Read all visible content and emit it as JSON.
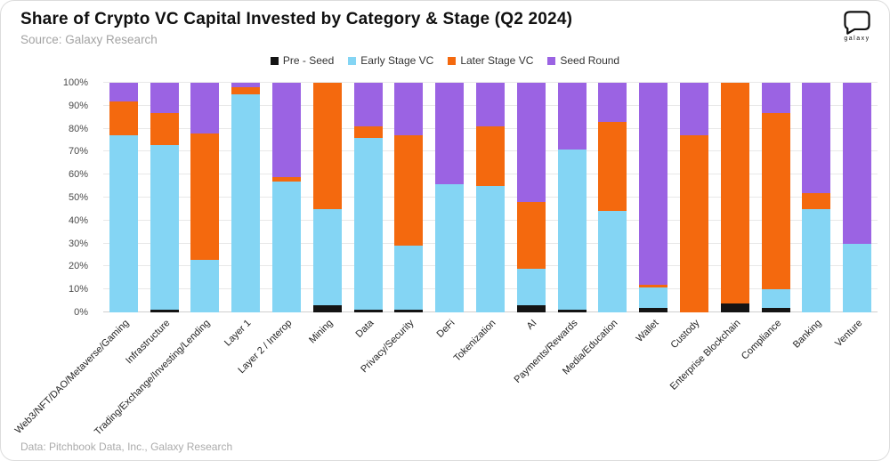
{
  "header": {
    "title": "Share of Crypto VC Capital Invested by Category & Stage (Q2 2024)",
    "source": "Source: Galaxy Research",
    "logo_text": "galaxy"
  },
  "footer": {
    "text": "Data: Pitchbook Data, Inc., Galaxy Research"
  },
  "colors": {
    "pre_seed": "#141414",
    "early": "#84d5f4",
    "later": "#f4690e",
    "seed": "#9b63e3",
    "grid": "#e8e8e8",
    "axis_text": "#4a4a4a"
  },
  "chart_data": {
    "type": "bar",
    "stacked": true,
    "title": "Share of Crypto VC Capital Invested by Category & Stage (Q2 2024)",
    "xlabel": "",
    "ylabel": "",
    "ylim": [
      0,
      100
    ],
    "grid": true,
    "legend_position": "top-center",
    "yticks": [
      "0%",
      "10%",
      "20%",
      "30%",
      "40%",
      "50%",
      "60%",
      "70%",
      "80%",
      "90%",
      "100%"
    ],
    "legend": [
      "Pre - Seed",
      "Early Stage VC",
      "Later Stage VC",
      "Seed Round"
    ],
    "categories": [
      "Web3/NFT/DAO/Metaverse/Gaming",
      "Infrastructure",
      "Trading/Exchange/Investing/Lending",
      "Layer 1",
      "Layer 2 / Interop",
      "Mining",
      "Data",
      "Privacy/Security",
      "DeFi",
      "Tokenization",
      "AI",
      "Payments/Rewards",
      "Media/Education",
      "Wallet",
      "Custody",
      "Enterprise Blockchain",
      "Compliance",
      "Banking",
      "Venture"
    ],
    "series": [
      {
        "name": "Pre - Seed",
        "color_key": "pre_seed",
        "values": [
          0,
          1,
          0,
          0,
          0,
          3,
          1,
          1,
          0,
          0,
          3,
          1,
          0,
          2,
          0,
          4,
          2,
          0,
          0
        ]
      },
      {
        "name": "Early Stage VC",
        "color_key": "early",
        "values": [
          77,
          72,
          23,
          95,
          57,
          42,
          75,
          28,
          56,
          55,
          16,
          70,
          44,
          9,
          0,
          0,
          8,
          45,
          30
        ]
      },
      {
        "name": "Later Stage VC",
        "color_key": "later",
        "values": [
          15,
          14,
          55,
          3,
          2,
          55,
          5,
          48,
          0,
          26,
          29,
          0,
          39,
          1,
          77,
          96,
          77,
          7,
          0
        ]
      },
      {
        "name": "Seed Round",
        "color_key": "seed",
        "values": [
          8,
          13,
          22,
          2,
          41,
          0,
          19,
          23,
          44,
          19,
          52,
          29,
          17,
          88,
          23,
          0,
          13,
          48,
          70
        ]
      }
    ]
  }
}
